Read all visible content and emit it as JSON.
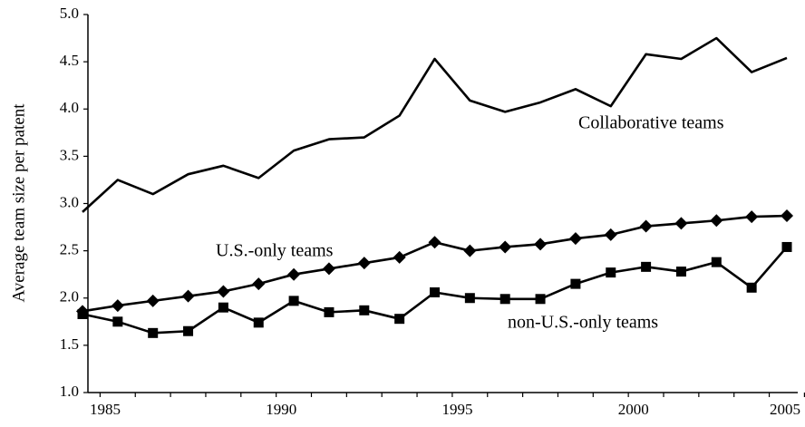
{
  "chart_data": {
    "type": "line",
    "y_label": "Average team size per patent",
    "categories": [
      "1985",
      null,
      null,
      null,
      null,
      "1990",
      null,
      null,
      null,
      null,
      "1995",
      null,
      null,
      null,
      null,
      "2000",
      null,
      null,
      null,
      null,
      "2005"
    ],
    "series": [
      {
        "name": "Collaborative teams",
        "color": "#000000",
        "marker": "none",
        "values": [
          2.91,
          3.25,
          3.1,
          3.31,
          3.4,
          3.27,
          3.56,
          3.68,
          3.7,
          3.93,
          4.53,
          4.09,
          3.97,
          4.07,
          4.21,
          4.03,
          4.58,
          4.53,
          4.75,
          4.39,
          4.54
        ]
      },
      {
        "name": "U.S.-only teams",
        "color": "#000000",
        "marker": "diamond",
        "values": [
          1.86,
          1.92,
          1.97,
          2.02,
          2.07,
          2.15,
          2.25,
          2.31,
          2.37,
          2.43,
          2.59,
          2.5,
          2.54,
          2.57,
          2.63,
          2.67,
          2.76,
          2.79,
          2.82,
          2.86,
          2.87
        ]
      },
      {
        "name": "non-U.S.-only teams",
        "color": "#000000",
        "marker": "square",
        "values": [
          1.83,
          1.75,
          1.63,
          1.65,
          1.9,
          1.74,
          1.97,
          1.85,
          1.87,
          1.78,
          2.06,
          2.0,
          1.99,
          1.99,
          2.15,
          2.27,
          2.33,
          2.28,
          2.38,
          2.11,
          2.54
        ]
      }
    ],
    "ylim": [
      1,
      5
    ],
    "yticks": [
      {
        "value": 1,
        "label": "1.0"
      },
      1.5,
      {
        "value": 2,
        "label": "2.0"
      },
      2.5,
      {
        "value": 3,
        "label": "3.0"
      },
      3.5,
      {
        "value": 4,
        "label": "4.0"
      },
      4.5,
      {
        "value": 5,
        "label": "5.0"
      }
    ],
    "grid": false
  }
}
